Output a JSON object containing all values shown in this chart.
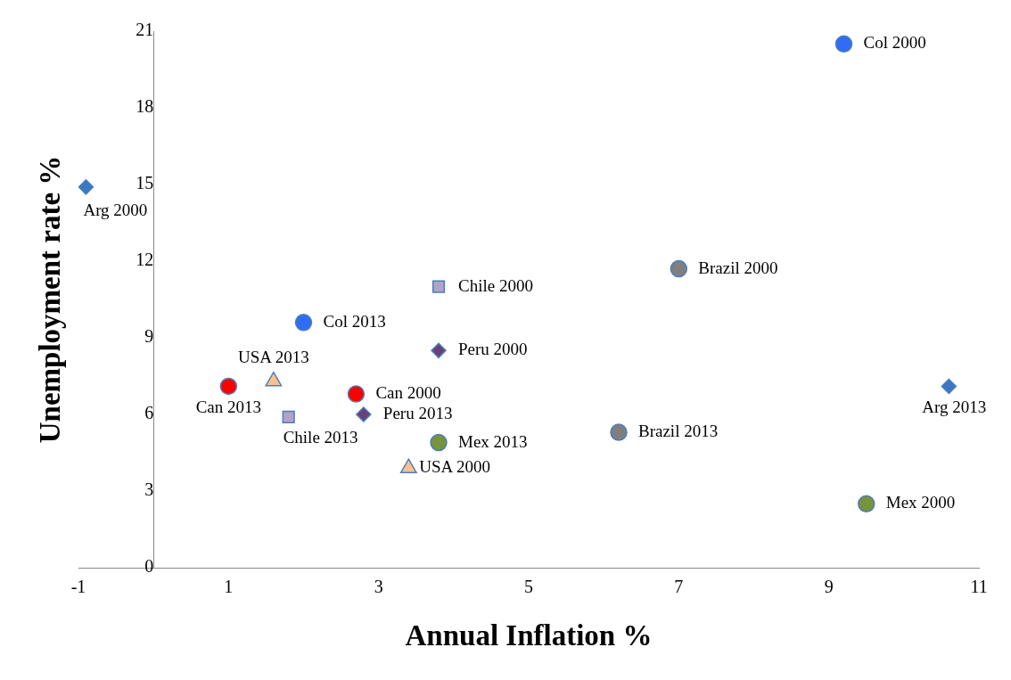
{
  "chart_data": {
    "type": "scatter",
    "xlabel": "Annual Inflation %",
    "ylabel": "Unemployment rate %",
    "xlim": [
      -1,
      11
    ],
    "xticks": [
      -1,
      1,
      3,
      5,
      7,
      9,
      11
    ],
    "ylim": [
      0,
      21
    ],
    "yticks": [
      0,
      3,
      6,
      9,
      12,
      15,
      18,
      21
    ],
    "grid": false,
    "legend": false,
    "series": [
      {
        "color": "#2f6df6",
        "marker": "circle",
        "x": [
          9.2,
          2.0
        ],
        "values": [
          20.5,
          9.6
        ]
      },
      {
        "color": "#3a78c0",
        "marker": "diamond",
        "x": [
          -0.9,
          10.6
        ],
        "values": [
          14.9,
          7.1
        ]
      },
      {
        "color": "#7f7f7f",
        "marker": "circle",
        "x": [
          7.0,
          6.2
        ],
        "values": [
          11.7,
          5.3
        ]
      },
      {
        "color": "#b3a2c7",
        "marker": "square",
        "x": [
          3.8,
          1.8
        ],
        "values": [
          11.0,
          5.9
        ]
      },
      {
        "color": "#6b3f78",
        "marker": "diamond",
        "x": [
          3.8,
          2.8
        ],
        "values": [
          8.5,
          6.0
        ]
      },
      {
        "color": "#fac090",
        "marker": "triangle",
        "x": [
          3.4,
          1.6
        ],
        "values": [
          3.9,
          7.3
        ]
      },
      {
        "color": "#ff0000",
        "marker": "circle",
        "x": [
          2.7,
          1.0
        ],
        "values": [
          6.8,
          7.1
        ]
      },
      {
        "color": "#77933c",
        "marker": "circle",
        "x": [
          9.5,
          3.8
        ],
        "values": [
          2.5,
          4.9
        ]
      }
    ],
    "annotations": [
      {
        "text": "Col 2000",
        "x": 9.2,
        "y": 20.5
      },
      {
        "text": "Col 2013",
        "x": 2.0,
        "y": 9.6
      },
      {
        "text": "Arg 2000",
        "x": -0.9,
        "y": 14.9
      },
      {
        "text": "Arg 2013",
        "x": 10.6,
        "y": 7.1
      },
      {
        "text": "Brazil 2000",
        "x": 7.0,
        "y": 11.7
      },
      {
        "text": "Brazil 2013",
        "x": 6.2,
        "y": 5.3
      },
      {
        "text": "Chile 2000",
        "x": 3.8,
        "y": 11.0
      },
      {
        "text": "Chile 2013",
        "x": 1.8,
        "y": 5.9
      },
      {
        "text": "Peru 2000",
        "x": 3.8,
        "y": 8.5
      },
      {
        "text": "Peru 2013",
        "x": 2.8,
        "y": 6.0
      },
      {
        "text": "USA 2000",
        "x": 3.4,
        "y": 3.9
      },
      {
        "text": "USA 2013",
        "x": 1.6,
        "y": 7.3
      },
      {
        "text": "Can 2000",
        "x": 2.7,
        "y": 6.8
      },
      {
        "text": "Can 2013",
        "x": 1.0,
        "y": 7.1
      },
      {
        "text": "Mex 2000",
        "x": 9.5,
        "y": 2.5
      },
      {
        "text": "Mex 2013",
        "x": 3.8,
        "y": 4.9
      }
    ]
  }
}
